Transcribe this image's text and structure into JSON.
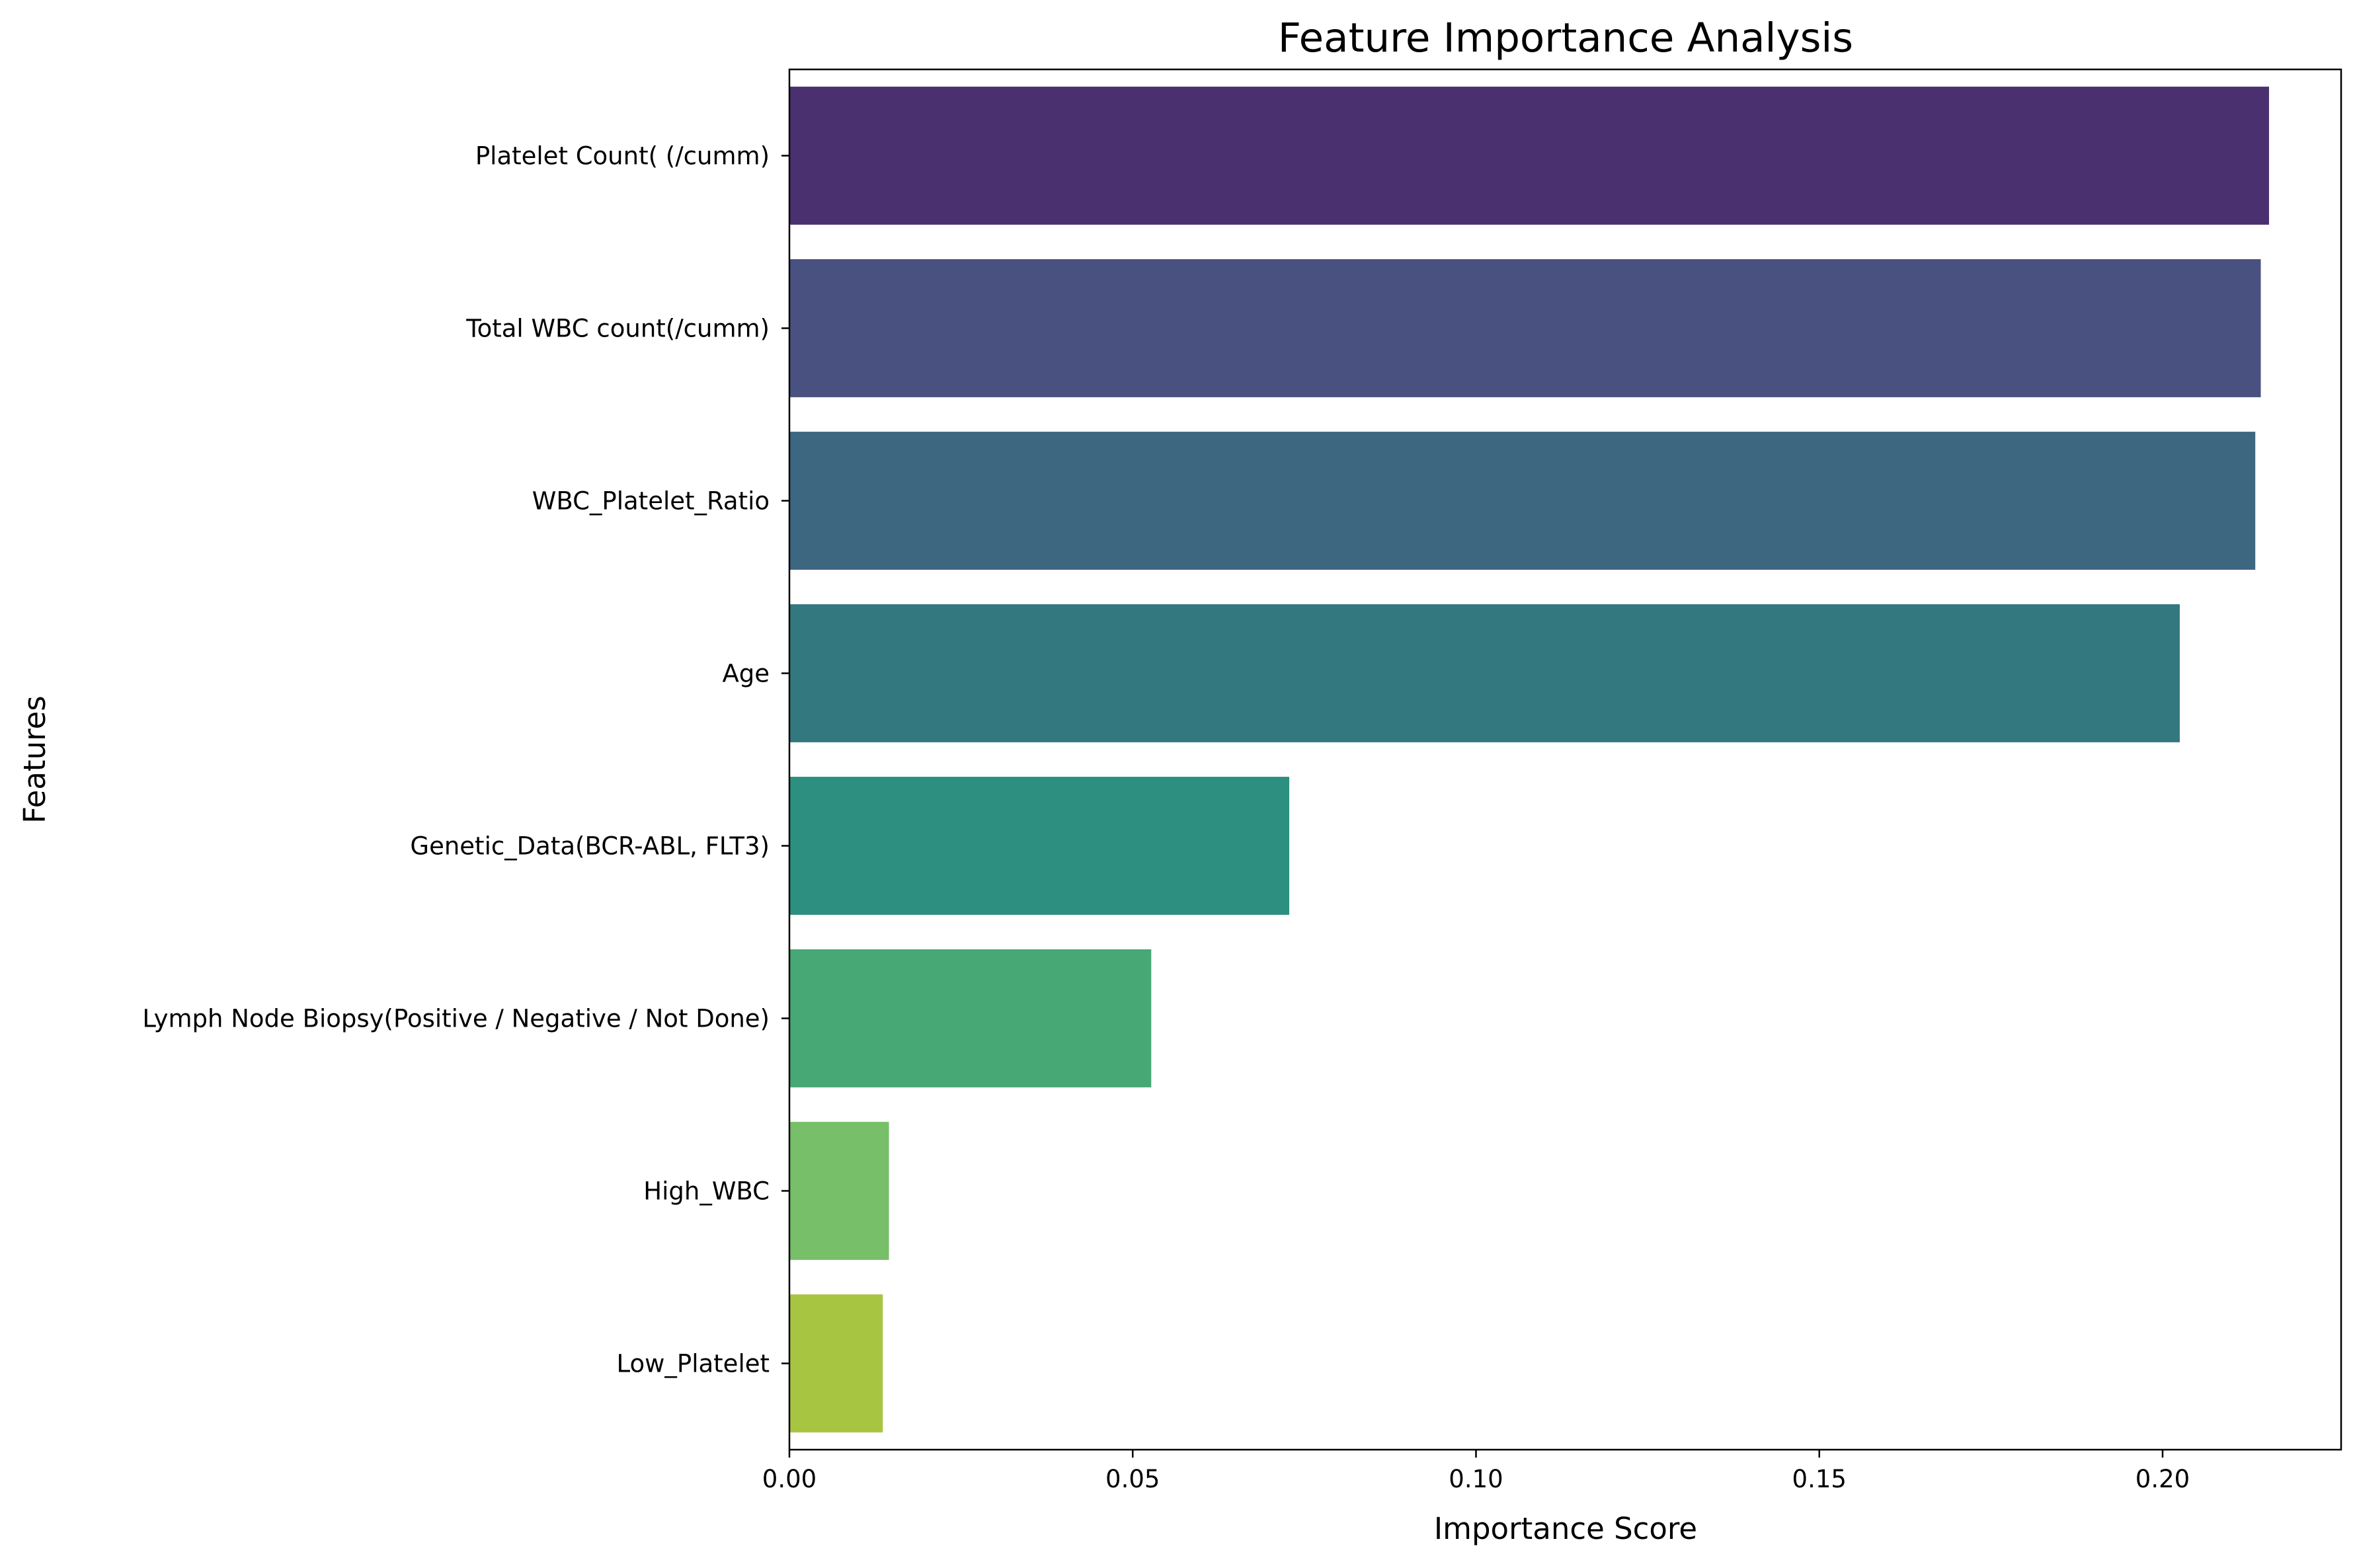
{
  "chart_data": {
    "type": "bar",
    "orientation": "horizontal",
    "title": "Feature Importance Analysis",
    "xlabel": "Importance Score",
    "ylabel": "Features",
    "xlim": [
      0.0,
      0.226
    ],
    "xticks": [
      0.0,
      0.05,
      0.1,
      0.15,
      0.2
    ],
    "xtick_labels": [
      "0.00",
      "0.05",
      "0.10",
      "0.15",
      "0.20"
    ],
    "grid": false,
    "legend": "none",
    "categories": [
      "Platelet Count( (/cumm)",
      "Total WBC count(/cumm)",
      "WBC_Platelet_Ratio",
      "Age",
      "Genetic_Data(BCR-ABL, FLT3)",
      "Lymph Node Biopsy(Positive / Negative / Not Done)",
      "High_WBC",
      "Low_Platelet"
    ],
    "values": [
      0.2155,
      0.2143,
      0.2135,
      0.2025,
      0.0728,
      0.0527,
      0.0145,
      0.0136
    ],
    "colors": [
      "#4a306e",
      "#48517f",
      "#3d6681",
      "#33787e",
      "#2d8f7f",
      "#47a875",
      "#77bf69",
      "#a8c541"
    ]
  }
}
